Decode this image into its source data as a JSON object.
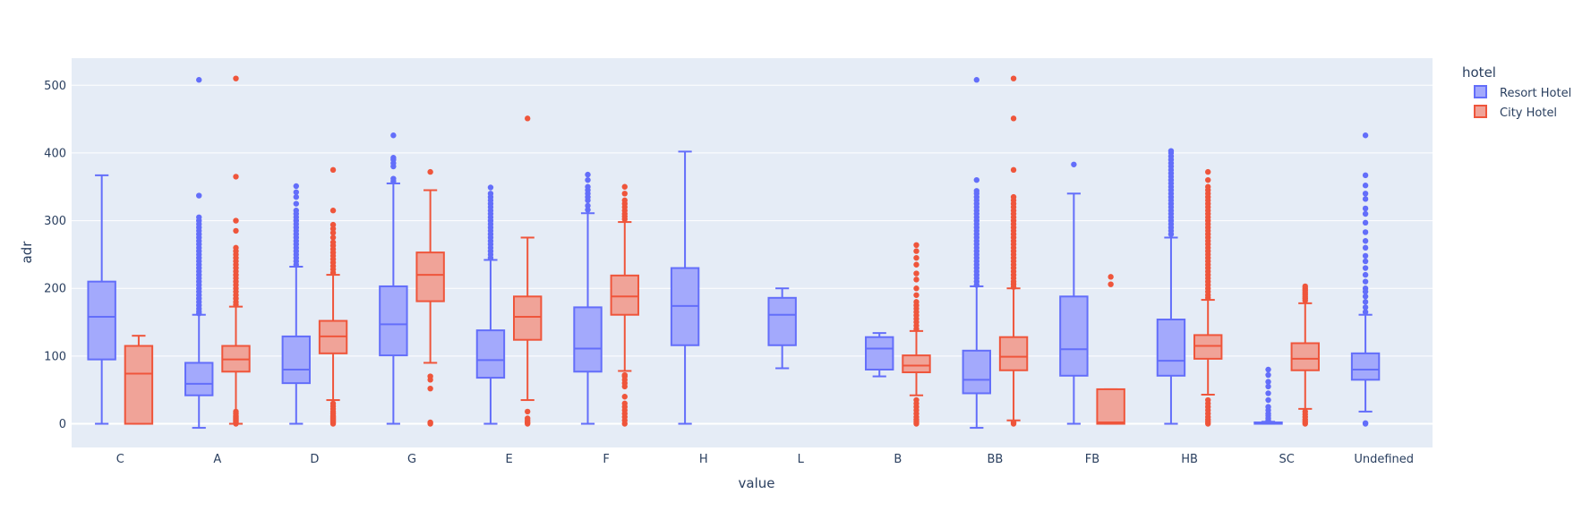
{
  "chart_data": {
    "type": "box",
    "title": "",
    "xlabel": "value",
    "ylabel": "adr",
    "ylim": [
      -35,
      540
    ],
    "yticks": [
      0,
      100,
      200,
      300,
      400,
      500
    ],
    "grid": true,
    "legend": {
      "title": "hotel",
      "placement": "top-right"
    },
    "colors": {
      "Resort Hotel": {
        "line": "#636efa",
        "fill": "#a3a9fc"
      },
      "City Hotel": {
        "line": "#ef553b",
        "fill": "#f0a398"
      },
      "plot_bg": "#e5ecf6",
      "grid": "#ffffff"
    },
    "categories": [
      "C",
      "A",
      "D",
      "G",
      "E",
      "F",
      "H",
      "L",
      "B",
      "BB",
      "FB",
      "HB",
      "SC",
      "Undefined"
    ],
    "series": [
      {
        "name": "Resort Hotel",
        "boxes": [
          {
            "category": "C",
            "min": 0,
            "q1": 95,
            "median": 158,
            "q3": 210,
            "max": 367,
            "outliers": []
          },
          {
            "category": "A",
            "min": -6,
            "q1": 42,
            "median": 59,
            "q3": 90,
            "max": 161,
            "outliers": [
              163,
              166,
              170,
              175,
              180,
              185,
              190,
              195,
              200,
              205,
              210,
              215,
              220,
              225,
              230,
              235,
              240,
              245,
              250,
              255,
              260,
              265,
              270,
              275,
              280,
              285,
              290,
              295,
              300,
              305,
              337,
              508
            ]
          },
          {
            "category": "D",
            "min": 0,
            "q1": 60,
            "median": 80,
            "q3": 129,
            "max": 232,
            "outliers": [
              235,
              240,
              245,
              250,
              255,
              260,
              265,
              270,
              275,
              280,
              285,
              290,
              295,
              300,
              305,
              310,
              315,
              325,
              335,
              342,
              351
            ]
          },
          {
            "category": "G",
            "min": 0,
            "q1": 101,
            "median": 147,
            "q3": 203,
            "max": 355,
            "outliers": [
              358,
              362,
              380,
              385,
              390,
              393,
              426
            ]
          },
          {
            "category": "E",
            "min": 0,
            "q1": 68,
            "median": 94,
            "q3": 138,
            "max": 242,
            "outliers": [
              245,
              250,
              255,
              260,
              265,
              270,
              275,
              280,
              285,
              290,
              295,
              300,
              305,
              310,
              315,
              320,
              325,
              330,
              335,
              340,
              349
            ]
          },
          {
            "category": "F",
            "min": 0,
            "q1": 77,
            "median": 111,
            "q3": 172,
            "max": 311,
            "outliers": [
              316,
              322,
              330,
              335,
              340,
              345,
              350,
              360,
              368
            ]
          },
          {
            "category": "H",
            "min": 0,
            "q1": 116,
            "median": 174,
            "q3": 230,
            "max": 402,
            "outliers": []
          },
          {
            "category": "L",
            "min": 82,
            "q1": 116,
            "median": 161,
            "q3": 186,
            "max": 200,
            "outliers": []
          },
          {
            "category": "B",
            "min": 70,
            "q1": 80,
            "median": 111,
            "q3": 128,
            "max": 134,
            "outliers": []
          },
          {
            "category": "BB",
            "min": -6,
            "q1": 45,
            "median": 65,
            "q3": 108,
            "max": 203,
            "outliers": [
              205,
              210,
              215,
              220,
              225,
              230,
              235,
              240,
              245,
              250,
              255,
              260,
              265,
              270,
              275,
              280,
              285,
              290,
              295,
              300,
              305,
              310,
              315,
              320,
              325,
              330,
              335,
              340,
              344,
              360,
              508
            ]
          },
          {
            "category": "FB",
            "min": 0,
            "q1": 71,
            "median": 110,
            "q3": 188,
            "max": 340,
            "outliers": [
              383
            ]
          },
          {
            "category": "HB",
            "min": 0,
            "q1": 71,
            "median": 93,
            "q3": 154,
            "max": 275,
            "outliers": [
              280,
              285,
              290,
              295,
              300,
              305,
              310,
              315,
              320,
              325,
              330,
              335,
              340,
              345,
              350,
              355,
              360,
              365,
              370,
              375,
              380,
              385,
              390,
              395,
              400,
              403
            ]
          },
          {
            "category": "SC",
            "min": 0,
            "q1": 0,
            "median": 1,
            "q3": 2,
            "max": 3,
            "outliers": [
              5,
              8,
              12,
              15,
              20,
              25,
              35,
              45,
              55,
              62,
              72,
              80
            ]
          },
          {
            "category": "Undefined",
            "min": 18,
            "q1": 65,
            "median": 80,
            "q3": 104,
            "max": 161,
            "outliers": [
              0,
              1,
              165,
              172,
              180,
              188,
              195,
              200,
              210,
              220,
              230,
              240,
              248,
              260,
              270,
              283,
              297,
              310,
              318,
              332,
              340,
              352,
              367,
              426
            ]
          }
        ]
      },
      {
        "name": "City Hotel",
        "boxes": [
          {
            "category": "C",
            "min": 0,
            "q1": 0,
            "median": 74,
            "q3": 115,
            "max": 130,
            "outliers": []
          },
          {
            "category": "A",
            "min": 0,
            "q1": 77,
            "median": 95,
            "q3": 115,
            "max": 173,
            "outliers": [
              0,
              2,
              4,
              6,
              8,
              10,
              12,
              15,
              18,
              176,
              180,
              185,
              190,
              195,
              200,
              205,
              210,
              215,
              220,
              225,
              230,
              235,
              240,
              245,
              250,
              255,
              260,
              285,
              300,
              365,
              510
            ]
          },
          {
            "category": "D",
            "min": 35,
            "q1": 104,
            "median": 129,
            "q3": 152,
            "max": 220,
            "outliers": [
              0,
              2,
              4,
              6,
              8,
              10,
              12,
              15,
              18,
              22,
              26,
              30,
              223,
              228,
              233,
              238,
              243,
              248,
              253,
              258,
              263,
              268,
              275,
              282,
              288,
              294,
              315,
              375
            ]
          },
          {
            "category": "G",
            "min": 90,
            "q1": 181,
            "median": 220,
            "q3": 253,
            "max": 345,
            "outliers": [
              0,
              2,
              52,
              65,
              70,
              372
            ]
          },
          {
            "category": "E",
            "min": 35,
            "q1": 124,
            "median": 158,
            "q3": 188,
            "max": 275,
            "outliers": [
              0,
              2,
              5,
              8,
              18,
              451
            ]
          },
          {
            "category": "F",
            "min": 78,
            "q1": 161,
            "median": 188,
            "q3": 219,
            "max": 298,
            "outliers": [
              0,
              5,
              10,
              15,
              20,
              25,
              30,
              40,
              55,
              60,
              65,
              70,
              72,
              302,
              306,
              310,
              315,
              320,
              325,
              330,
              340,
              350
            ]
          },
          {
            "category": "H",
            "min": null,
            "q1": null,
            "median": null,
            "q3": null,
            "max": null,
            "outliers": []
          },
          {
            "category": "L",
            "min": null,
            "q1": null,
            "median": null,
            "q3": null,
            "max": null,
            "outliers": []
          },
          {
            "category": "B",
            "min": 42,
            "q1": 76,
            "median": 86,
            "q3": 101,
            "max": 137,
            "outliers": [
              0,
              3,
              6,
              10,
              15,
              20,
              25,
              30,
              35,
              140,
              145,
              150,
              155,
              160,
              165,
              170,
              175,
              180,
              190,
              200,
              213,
              222,
              235,
              245,
              255,
              264
            ]
          },
          {
            "category": "BB",
            "min": 5,
            "q1": 79,
            "median": 99,
            "q3": 128,
            "max": 200,
            "outliers": [
              0,
              2,
              202,
              206,
              210,
              215,
              220,
              225,
              230,
              235,
              240,
              245,
              250,
              255,
              260,
              265,
              270,
              275,
              280,
              285,
              290,
              295,
              300,
              305,
              310,
              315,
              320,
              325,
              330,
              335,
              375,
              451,
              510
            ]
          },
          {
            "category": "FB",
            "min": 0,
            "q1": 0,
            "median": 2,
            "q3": 51,
            "max": 51,
            "outliers": [
              206,
              217
            ]
          },
          {
            "category": "HB",
            "min": 43,
            "q1": 96,
            "median": 115,
            "q3": 131,
            "max": 183,
            "outliers": [
              0,
              3,
              6,
              10,
              15,
              20,
              25,
              30,
              35,
              186,
              190,
              195,
              200,
              205,
              210,
              215,
              220,
              225,
              230,
              235,
              240,
              245,
              250,
              255,
              260,
              265,
              270,
              275,
              280,
              285,
              290,
              295,
              300,
              305,
              310,
              315,
              320,
              325,
              330,
              335,
              340,
              345,
              350,
              360,
              372
            ]
          },
          {
            "category": "SC",
            "min": 22,
            "q1": 79,
            "median": 96,
            "q3": 119,
            "max": 178,
            "outliers": [
              0,
              3,
              6,
              10,
              14,
              18,
              182,
              185,
              188,
              191,
              194,
              197,
              200,
              203
            ]
          },
          {
            "category": "Undefined",
            "min": null,
            "q1": null,
            "median": null,
            "q3": null,
            "max": null,
            "outliers": []
          }
        ]
      }
    ]
  }
}
